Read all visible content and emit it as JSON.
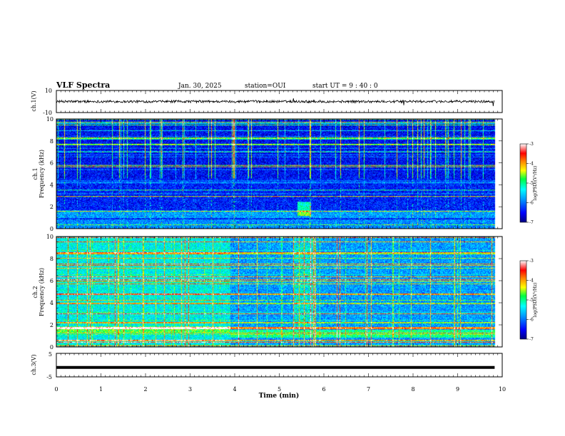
{
  "header": {
    "title": "VLF Spectra",
    "date": "Jan. 30, 2025",
    "station": "station=OUI",
    "start_ut": "start  UT =   9 : 40 : 0"
  },
  "chart_data": [
    {
      "type": "line",
      "panel": "ch1-waveform",
      "ylabel": "ch.1(V)",
      "ylim": [
        -10,
        10
      ],
      "ytick_labels": [
        "10",
        "-10"
      ],
      "baseline_value": 0,
      "color": "#000000"
    },
    {
      "type": "heatmap",
      "panel": "ch1-spectrogram",
      "ylabel_line1": "ch.1",
      "ylabel_line2": "Frequency (kHz)",
      "ylim": [
        0,
        10
      ],
      "ytick_labels": [
        "0",
        "2",
        "4",
        "6",
        "8",
        "10"
      ],
      "colorbar": {
        "label": "log(PSD)(V²/Hz)",
        "range": [
          -7,
          -3
        ],
        "tick_labels": [
          "-3",
          "-4",
          "-5",
          "-6",
          "-7"
        ]
      },
      "background_level": -6.2,
      "upper_band_noise_cutoff_khz": 4.6
    },
    {
      "type": "heatmap",
      "panel": "ch2-spectrogram",
      "ylabel_line1": "ch.2",
      "ylabel_line2": "Frequency (kHz)",
      "ylim": [
        0,
        10
      ],
      "ytick_labels": [
        "0",
        "2",
        "4",
        "6",
        "8",
        "10"
      ],
      "colorbar": {
        "label": "log(PSD)(V²/Hz)",
        "range": [
          -7,
          -3
        ],
        "tick_labels": [
          "-3",
          "-4",
          "-5",
          "-6",
          "-7"
        ]
      },
      "background_level": -5.6,
      "activity_change_min": 3.9
    },
    {
      "type": "line",
      "panel": "ch3-waveform",
      "ylabel": "ch.3(V)",
      "ylim": [
        -5,
        5
      ],
      "ytick_labels": [
        "5",
        "-5"
      ],
      "baseline_value": -1,
      "color": "#000000"
    }
  ],
  "x_axis": {
    "label": "Time  (min)",
    "range": [
      0,
      10
    ],
    "tick_labels": [
      "0",
      "1",
      "2",
      "3",
      "4",
      "5",
      "6",
      "7",
      "8",
      "9",
      "10"
    ],
    "data_end_min": 9.83
  },
  "colorscale": [
    "#000080",
    "#0000ff",
    "#0080ff",
    "#00ffff",
    "#00ff80",
    "#ffff00",
    "#ff8000",
    "#ff0000",
    "#ff80a0",
    "#ffffff"
  ]
}
